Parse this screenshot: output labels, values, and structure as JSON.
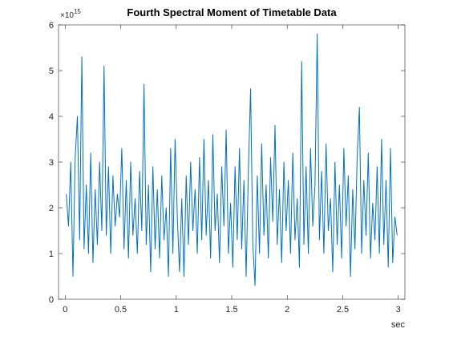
{
  "chart_data": {
    "type": "line",
    "title": "Fourth Spectral Moment of Timetable Data",
    "x_label": "sec",
    "y_multiplier": {
      "base": "×10",
      "exponent": "15"
    },
    "xlim": [
      -0.06,
      3.06
    ],
    "ylim": [
      0,
      6
    ],
    "xticks": [
      0,
      0.5,
      1,
      1.5,
      2,
      2.5,
      3
    ],
    "yticks": [
      0,
      1,
      2,
      3,
      4,
      5,
      6
    ],
    "grid": false,
    "box": true,
    "x": [
      0.01,
      0.03,
      0.05,
      0.07,
      0.09,
      0.11,
      0.13,
      0.15,
      0.17,
      0.19,
      0.21,
      0.23,
      0.25,
      0.27,
      0.29,
      0.31,
      0.33,
      0.35,
      0.37,
      0.39,
      0.41,
      0.43,
      0.45,
      0.47,
      0.49,
      0.51,
      0.53,
      0.55,
      0.57,
      0.59,
      0.61,
      0.63,
      0.65,
      0.67,
      0.69,
      0.71,
      0.73,
      0.75,
      0.77,
      0.79,
      0.81,
      0.83,
      0.85,
      0.87,
      0.89,
      0.91,
      0.93,
      0.95,
      0.97,
      0.99,
      1.01,
      1.03,
      1.05,
      1.07,
      1.09,
      1.11,
      1.13,
      1.15,
      1.17,
      1.19,
      1.21,
      1.23,
      1.25,
      1.27,
      1.29,
      1.31,
      1.33,
      1.35,
      1.37,
      1.39,
      1.41,
      1.43,
      1.45,
      1.47,
      1.49,
      1.51,
      1.53,
      1.55,
      1.57,
      1.59,
      1.61,
      1.63,
      1.65,
      1.67,
      1.69,
      1.71,
      1.73,
      1.75,
      1.77,
      1.79,
      1.81,
      1.83,
      1.85,
      1.87,
      1.89,
      1.91,
      1.93,
      1.95,
      1.97,
      1.99,
      2.01,
      2.03,
      2.05,
      2.07,
      2.09,
      2.11,
      2.13,
      2.15,
      2.17,
      2.19,
      2.21,
      2.23,
      2.25,
      2.27,
      2.29,
      2.31,
      2.33,
      2.35,
      2.37,
      2.39,
      2.41,
      2.43,
      2.45,
      2.47,
      2.49,
      2.51,
      2.53,
      2.55,
      2.57,
      2.59,
      2.61,
      2.63,
      2.65,
      2.67,
      2.69,
      2.71,
      2.73,
      2.75,
      2.77,
      2.79,
      2.81,
      2.83,
      2.85,
      2.87,
      2.89,
      2.91,
      2.93,
      2.95,
      2.97,
      2.99
    ],
    "series": [
      {
        "color": "#0072bd",
        "values": [
          2.3,
          1.6,
          3.0,
          0.5,
          3.1,
          4.0,
          1.3,
          5.3,
          1.1,
          2.5,
          1.0,
          3.2,
          0.8,
          2.4,
          1.2,
          3.0,
          1.5,
          5.1,
          1.4,
          2.9,
          1.0,
          2.7,
          1.6,
          2.3,
          1.8,
          3.3,
          1.1,
          2.6,
          0.9,
          3.0,
          1.4,
          2.2,
          1.0,
          2.8,
          1.5,
          4.7,
          1.2,
          2.5,
          0.6,
          2.9,
          1.1,
          2.4,
          0.9,
          2.7,
          1.3,
          2.0,
          0.5,
          3.3,
          1.0,
          3.5,
          1.8,
          0.6,
          2.2,
          0.5,
          2.7,
          1.2,
          3.0,
          1.5,
          2.4,
          1.0,
          3.1,
          1.3,
          3.5,
          1.4,
          2.6,
          0.9,
          3.6,
          1.5,
          2.3,
          0.8,
          2.9,
          1.6,
          3.7,
          1.0,
          2.1,
          0.7,
          2.9,
          1.3,
          3.3,
          1.1,
          2.6,
          0.5,
          2.8,
          4.6,
          1.2,
          0.3,
          2.7,
          1.0,
          3.4,
          1.4,
          2.5,
          0.9,
          3.1,
          1.7,
          3.8,
          1.2,
          2.4,
          0.8,
          3.0,
          1.5,
          2.6,
          1.0,
          3.2,
          1.3,
          2.2,
          0.7,
          5.2,
          1.2,
          2.9,
          1.0,
          3.3,
          1.6,
          2.5,
          5.8,
          1.3,
          2.8,
          1.0,
          3.4,
          1.5,
          2.2,
          0.6,
          3.0,
          1.2,
          2.5,
          0.9,
          3.3,
          1.6,
          2.7,
          0.5,
          2.4,
          1.1,
          3.1,
          4.2,
          1.0,
          2.6,
          1.4,
          3.2,
          0.9,
          2.1,
          1.3,
          2.9,
          1.0,
          3.5,
          1.2,
          2.6,
          0.7,
          3.3,
          0.8,
          1.8,
          1.4
        ]
      }
    ]
  }
}
